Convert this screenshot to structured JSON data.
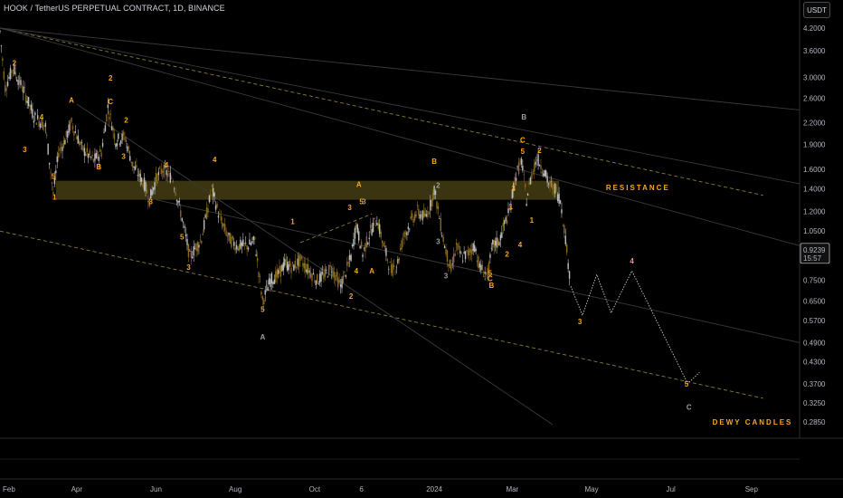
{
  "header": {
    "title": "HOOK / TetherUS PERPETUAL CONTRACT, 1D, BINANCE",
    "currency_button": "USDT"
  },
  "price_tag": {
    "price": "0.9239",
    "countdown": "15:57"
  },
  "annotations": {
    "resistance": "RESISTANCE",
    "watermark": "DEWY CANDLES"
  },
  "colors": {
    "background": "#000000",
    "wave_label": "#f5a623",
    "corrective_label": "#9e9e9e",
    "resistance_zone": "#4d4616",
    "channel_line": "#8a7a3c",
    "candle": "#9a9a9a"
  },
  "chart_data": {
    "type": "candlestick",
    "symbol": "HOOK / TetherUS PERPETUAL CONTRACT",
    "timeframe": "1D",
    "exchange": "BINANCE",
    "y_scale": "log",
    "ylim": [
      0.26,
      4.3
    ],
    "xlim": [
      "2023-02-01",
      "2024-10-08"
    ],
    "y_ticks": [
      "4.2000",
      "3.6000",
      "3.0000",
      "2.6000",
      "2.2000",
      "1.9000",
      "1.6000",
      "1.4000",
      "1.2000",
      "1.0500",
      "0.7500",
      "0.6500",
      "0.5700",
      "0.4900",
      "0.4300",
      "0.3700",
      "0.3250",
      "0.2850"
    ],
    "x_ticks": [
      "Feb",
      "Apr",
      "Jun",
      "Aug",
      "Oct",
      "6",
      "2024",
      "Mar",
      "May",
      "Jul",
      "Sep"
    ],
    "last_price": 0.9239,
    "resistance_zone": [
      1.3,
      1.48
    ],
    "price_path": [
      [
        "2023-02-01",
        4.1
      ],
      [
        "2023-02-05",
        2.8
      ],
      [
        "2023-02-11",
        3.2
      ],
      [
        "2023-02-20",
        2.7
      ],
      [
        "2023-02-27",
        2.3
      ],
      [
        "2023-03-08",
        2.15
      ],
      [
        "2023-03-14",
        1.35
      ],
      [
        "2023-03-18",
        1.8
      ],
      [
        "2023-03-23",
        1.95
      ],
      [
        "2023-03-28",
        2.2
      ],
      [
        "2023-04-05",
        1.85
      ],
      [
        "2023-04-14",
        1.7
      ],
      [
        "2023-04-20",
        1.8
      ],
      [
        "2023-04-25",
        2.45
      ],
      [
        "2023-05-01",
        1.95
      ],
      [
        "2023-05-08",
        2.0
      ],
      [
        "2023-05-14",
        1.65
      ],
      [
        "2023-05-23",
        1.45
      ],
      [
        "2023-05-27",
        1.3
      ],
      [
        "2023-06-01",
        1.5
      ],
      [
        "2023-06-06",
        1.6
      ],
      [
        "2023-06-14",
        1.5
      ],
      [
        "2023-06-21",
        1.15
      ],
      [
        "2023-06-27",
        0.88
      ],
      [
        "2023-07-06",
        1.0
      ],
      [
        "2023-07-14",
        1.4
      ],
      [
        "2023-07-20",
        1.15
      ],
      [
        "2023-07-27",
        1.0
      ],
      [
        "2023-08-02",
        0.95
      ],
      [
        "2023-08-11",
        0.95
      ],
      [
        "2023-08-16",
        0.98
      ],
      [
        "2023-08-22",
        0.65
      ],
      [
        "2023-08-28",
        0.75
      ],
      [
        "2023-09-03",
        0.78
      ],
      [
        "2023-09-08",
        0.84
      ],
      [
        "2023-09-14",
        0.82
      ],
      [
        "2023-09-20",
        0.86
      ],
      [
        "2023-10-03",
        0.75
      ],
      [
        "2023-10-09",
        0.78
      ],
      [
        "2023-10-14",
        0.82
      ],
      [
        "2023-10-21",
        0.72
      ],
      [
        "2023-10-29",
        0.88
      ],
      [
        "2023-11-02",
        1.1
      ],
      [
        "2023-11-07",
        0.9
      ],
      [
        "2023-11-13",
        1.05
      ],
      [
        "2023-11-18",
        1.14
      ],
      [
        "2023-11-23",
        0.95
      ],
      [
        "2023-11-29",
        0.8
      ],
      [
        "2023-12-04",
        0.85
      ],
      [
        "2023-12-08",
        1.0
      ],
      [
        "2023-12-14",
        1.12
      ],
      [
        "2023-12-19",
        1.2
      ],
      [
        "2023-12-25",
        1.15
      ],
      [
        "2023-12-29",
        1.25
      ],
      [
        "2024-01-01",
        1.4
      ],
      [
        "2024-01-05",
        1.15
      ],
      [
        "2024-01-09",
        0.95
      ],
      [
        "2024-01-14",
        0.8
      ],
      [
        "2024-01-18",
        0.95
      ],
      [
        "2024-01-22",
        0.88
      ],
      [
        "2024-01-27",
        0.9
      ],
      [
        "2024-02-01",
        0.95
      ],
      [
        "2024-02-05",
        0.82
      ],
      [
        "2024-02-11",
        0.78
      ],
      [
        "2024-02-15",
        0.95
      ],
      [
        "2024-02-20",
        0.98
      ],
      [
        "2024-02-24",
        1.1
      ],
      [
        "2024-02-28",
        1.2
      ],
      [
        "2024-03-03",
        1.5
      ],
      [
        "2024-03-08",
        1.7
      ],
      [
        "2024-03-12",
        1.3
      ],
      [
        "2024-03-16",
        1.55
      ],
      [
        "2024-03-20",
        1.73
      ],
      [
        "2024-03-25",
        1.6
      ],
      [
        "2024-03-29",
        1.45
      ],
      [
        "2024-04-03",
        1.4
      ],
      [
        "2024-04-07",
        1.3
      ],
      [
        "2024-04-11",
        1.0
      ],
      [
        "2024-04-15",
        0.72
      ]
    ],
    "projection": [
      [
        "2024-04-15",
        0.72
      ],
      [
        "2024-04-24",
        0.59
      ],
      [
        "2024-05-05",
        0.78
      ],
      [
        "2024-05-16",
        0.6
      ],
      [
        "2024-06-01",
        0.8
      ],
      [
        "2024-07-14",
        0.37
      ],
      [
        "2024-07-23",
        0.4
      ]
    ],
    "wave_labels": [
      {
        "text": "1",
        "date": "2023-03-15",
        "price": 1.3
      },
      {
        "text": "2",
        "date": "2023-02-12",
        "price": 3.25
      },
      {
        "text": "3",
        "date": "2023-02-20",
        "price": 1.8
      },
      {
        "text": "4",
        "date": "2023-03-05",
        "price": 2.25
      },
      {
        "text": "5",
        "date": "2023-03-14",
        "price": 1.5
      },
      {
        "text": "A",
        "date": "2023-03-28",
        "price": 2.52
      },
      {
        "text": "B",
        "date": "2023-04-18",
        "price": 1.6
      },
      {
        "text": "2",
        "date": "2023-04-27",
        "price": 2.93
      },
      {
        "text": "C",
        "date": "2023-04-27",
        "price": 2.5
      },
      {
        "text": "2",
        "date": "2023-05-09",
        "price": 2.2
      },
      {
        "text": "3",
        "date": "2023-05-07",
        "price": 1.72
      },
      {
        "text": "3",
        "date": "2023-05-28",
        "price": 1.26
      },
      {
        "text": "4",
        "date": "2023-06-09",
        "price": 1.62
      },
      {
        "text": "5",
        "date": "2023-06-21",
        "price": 0.99
      },
      {
        "text": "3",
        "date": "2023-06-26",
        "price": 0.805
      },
      {
        "text": "4",
        "date": "2023-07-16",
        "price": 1.68
      },
      {
        "text": "5",
        "date": "2023-08-22",
        "price": 0.605
      },
      {
        "text": "1",
        "date": "2023-09-14",
        "price": 1.1
      },
      {
        "text": "3",
        "date": "2023-10-28",
        "price": 1.21
      },
      {
        "text": "5",
        "date": "2023-11-06",
        "price": 1.26
      },
      {
        "text": "2",
        "date": "2023-10-29",
        "price": 0.66
      },
      {
        "text": "4",
        "date": "2023-11-02",
        "price": 0.785
      },
      {
        "text": "A",
        "date": "2023-11-14",
        "price": 0.785
      },
      {
        "text": "B",
        "date": "2024-01-01",
        "price": 1.66
      },
      {
        "text": "5",
        "date": "2024-02-13",
        "price": 0.775
      },
      {
        "text": "C",
        "date": "2024-02-13",
        "price": 0.745
      },
      {
        "text": "B",
        "date": "2024-02-14",
        "price": 0.712
      },
      {
        "text": "1",
        "date": "2024-02-29",
        "price": 1.22
      },
      {
        "text": "2",
        "date": "2024-02-26",
        "price": 0.88
      },
      {
        "text": "3",
        "date": "2024-03-02",
        "price": 1.38
      },
      {
        "text": "4",
        "date": "2024-03-07",
        "price": 0.94
      },
      {
        "text": "C",
        "date": "2024-03-09",
        "price": 1.92
      },
      {
        "text": "5",
        "date": "2024-03-09",
        "price": 1.78
      },
      {
        "text": "1",
        "date": "2024-03-16",
        "price": 1.11
      },
      {
        "text": "2",
        "date": "2024-03-22",
        "price": 1.79
      },
      {
        "text": "3",
        "date": "2024-04-22",
        "price": 0.555
      },
      {
        "text": "4",
        "date": "2024-06-01",
        "price": 0.84
      },
      {
        "text": "5",
        "date": "2024-07-13",
        "price": 0.363
      },
      {
        "text": "A",
        "date": "2023-11-04",
        "price": 1.42
      }
    ],
    "corrective_labels": [
      {
        "text": "A",
        "date": "2023-08-22",
        "price": 0.5
      },
      {
        "text": "3",
        "date": "2023-11-08",
        "price": 1.26
      },
      {
        "text": "2",
        "date": "2024-01-04",
        "price": 1.41
      },
      {
        "text": "3",
        "date": "2024-01-04",
        "price": 0.96
      },
      {
        "text": "3",
        "date": "2024-01-10",
        "price": 0.76
      },
      {
        "text": "B",
        "date": "2024-03-10",
        "price": 2.25
      },
      {
        "text": "C",
        "date": "2024-07-15",
        "price": 0.31
      }
    ],
    "trend_lines": [
      {
        "style": "dashed",
        "from": [
          "2023-02-01",
          4.2
        ],
        "to": [
          "2024-09-10",
          1.34
        ]
      },
      {
        "style": "dashed",
        "from": [
          "2023-02-01",
          1.05
        ],
        "to": [
          "2024-09-10",
          0.335
        ]
      },
      {
        "style": "dashed",
        "from": [
          "2023-09-20",
          0.97
        ],
        "to": [
          "2023-11-14",
          1.18
        ]
      },
      {
        "style": "solid",
        "from": [
          "2023-02-01",
          4.2
        ],
        "to": [
          "2024-10-08",
          2.4
        ]
      },
      {
        "style": "solid",
        "from": [
          "2023-02-01",
          4.2
        ],
        "to": [
          "2024-10-08",
          1.45
        ]
      },
      {
        "style": "solid",
        "from": [
          "2023-02-01",
          4.2
        ],
        "to": [
          "2024-10-08",
          0.95
        ]
      },
      {
        "style": "solid",
        "from": [
          "2023-06-01",
          1.3
        ],
        "to": [
          "2024-10-08",
          0.49
        ]
      },
      {
        "style": "solid",
        "from": [
          "2023-04-01",
          2.5
        ],
        "to": [
          "2024-04-01",
          0.28
        ]
      }
    ]
  }
}
